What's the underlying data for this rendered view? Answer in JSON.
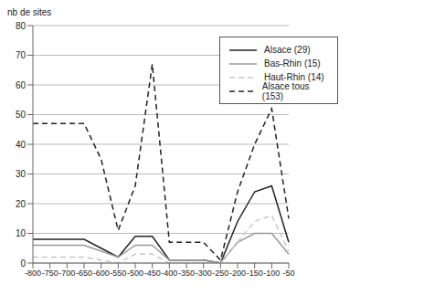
{
  "chart_data": {
    "type": "line",
    "y_label": "nb de sites",
    "categories": [
      "-800",
      "-750",
      "-700",
      "-650",
      "-600",
      "-550",
      "-500",
      "-450",
      "-400",
      "-350",
      "-300",
      "-250",
      "-200",
      "-150",
      "-100",
      "-50"
    ],
    "series": [
      {
        "name": "Alsace (29)",
        "color": "#222222",
        "line_style": "solid",
        "values": [
          8,
          8,
          8,
          8,
          5,
          2,
          9,
          9,
          1,
          1,
          1,
          0,
          14,
          24,
          26,
          7
        ]
      },
      {
        "name": "Bas-Rhin (15)",
        "color": "#999999",
        "line_style": "solid",
        "values": [
          6,
          6,
          6,
          6,
          4,
          2,
          6,
          6,
          1,
          1,
          1,
          0,
          7,
          10,
          10,
          3
        ]
      },
      {
        "name": "Haut-Rhin (14)",
        "color": "#c8c8c8",
        "line_style": "dashed",
        "values": [
          2,
          2,
          2,
          2,
          1,
          0,
          3,
          3,
          0,
          0,
          0,
          0,
          7,
          14,
          16,
          4
        ]
      },
      {
        "name": "Alsace tous (153)",
        "color": "#222222",
        "line_style": "dashed",
        "values": [
          47,
          47,
          47,
          47,
          35,
          11,
          26,
          67,
          7,
          7,
          7,
          1,
          24,
          40,
          52,
          15
        ]
      }
    ],
    "ylim": [
      0,
      80
    ],
    "yticks": [
      0,
      10,
      20,
      30,
      40,
      50,
      60,
      70,
      80
    ],
    "grid": true,
    "legend": "upper right"
  }
}
